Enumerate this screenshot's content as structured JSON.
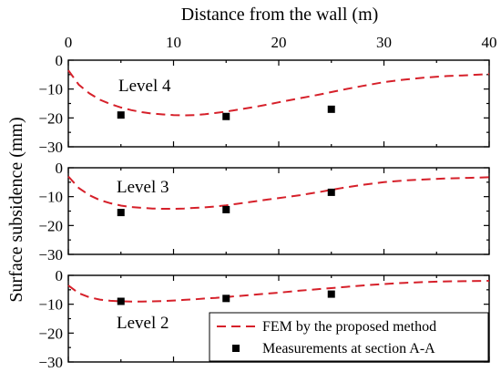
{
  "chart_data": {
    "type": "line",
    "xlabel": "Distance from the wall (m)",
    "ylabel": "Surface subsidence (mm)",
    "xlim": [
      0,
      40
    ],
    "ylim": [
      -30,
      0
    ],
    "x_ticks": [
      "0",
      "10",
      "20",
      "30",
      "40"
    ],
    "y_ticks": [
      "0",
      "−10",
      "−20",
      "−30"
    ],
    "x_axis_position": "top",
    "grid": false,
    "legend_position": "bottom-right",
    "legend": [
      {
        "label": "FEM by the proposed method",
        "style": "dashed-line",
        "color": "#d6202a"
      },
      {
        "label": "Measurements at section A-A",
        "style": "square-marker",
        "color": "#000000"
      }
    ],
    "panels": [
      {
        "label": "Level 4",
        "series": [
          {
            "name": "FEM by the proposed method",
            "kind": "line",
            "color": "#d6202a",
            "x": [
              0,
              1,
              2,
              3,
              4,
              5,
              6,
              7,
              8,
              9,
              10,
              11,
              12,
              13,
              14,
              15,
              16,
              17,
              18,
              19,
              20,
              22,
              24,
              26,
              28,
              30,
              32,
              34,
              36,
              38,
              40
            ],
            "y": [
              -3.5,
              -8.5,
              -11.5,
              -13.7,
              -15.2,
              -16.4,
              -17.3,
              -18.0,
              -18.5,
              -18.8,
              -19.0,
              -19.1,
              -19.0,
              -18.7,
              -18.3,
              -17.8,
              -17.2,
              -16.6,
              -16.0,
              -15.3,
              -14.6,
              -13.2,
              -11.8,
              -10.3,
              -8.9,
              -7.6,
              -6.7,
              -6.0,
              -5.5,
              -5.2,
              -4.8
            ]
          },
          {
            "name": "Measurements at section A-A",
            "kind": "scatter",
            "color": "#000000",
            "x": [
              5,
              15,
              25
            ],
            "y": [
              -19.0,
              -19.5,
              -17.0
            ]
          }
        ]
      },
      {
        "label": "Level 3",
        "series": [
          {
            "name": "FEM by the proposed method",
            "kind": "line",
            "color": "#d6202a",
            "x": [
              0,
              1,
              2,
              3,
              4,
              5,
              6,
              7,
              8,
              9,
              10,
              11,
              12,
              13,
              14,
              15,
              16,
              17,
              18,
              19,
              20,
              22,
              24,
              26,
              28,
              30,
              32,
              34,
              36,
              38,
              40
            ],
            "y": [
              -3.0,
              -7.0,
              -9.5,
              -11.2,
              -12.3,
              -13.1,
              -13.6,
              -13.9,
              -14.1,
              -14.2,
              -14.2,
              -14.1,
              -13.9,
              -13.7,
              -13.4,
              -13.0,
              -12.5,
              -12.0,
              -11.5,
              -11.0,
              -10.5,
              -9.5,
              -8.3,
              -7.0,
              -5.9,
              -5.0,
              -4.4,
              -4.0,
              -3.7,
              -3.5,
              -3.3
            ]
          },
          {
            "name": "Measurements at section A-A",
            "kind": "scatter",
            "color": "#000000",
            "x": [
              5,
              15,
              25
            ],
            "y": [
              -15.5,
              -14.5,
              -8.5
            ]
          }
        ]
      },
      {
        "label": "Level 2",
        "series": [
          {
            "name": "FEM by the proposed method",
            "kind": "line",
            "color": "#d6202a",
            "x": [
              0,
              1,
              2,
              3,
              4,
              5,
              6,
              7,
              8,
              9,
              10,
              11,
              12,
              13,
              14,
              15,
              16,
              17,
              18,
              19,
              20,
              22,
              24,
              26,
              28,
              30,
              32,
              34,
              36,
              38,
              40
            ],
            "y": [
              -3.5,
              -6.2,
              -7.6,
              -8.4,
              -8.8,
              -9.0,
              -9.1,
              -9.1,
              -9.0,
              -8.9,
              -8.7,
              -8.5,
              -8.3,
              -8.0,
              -7.8,
              -7.5,
              -7.2,
              -6.9,
              -6.6,
              -6.3,
              -6.0,
              -5.3,
              -4.7,
              -4.1,
              -3.5,
              -3.0,
              -2.6,
              -2.3,
              -2.1,
              -2.0,
              -1.9
            ]
          },
          {
            "name": "Measurements at section A-A",
            "kind": "scatter",
            "color": "#000000",
            "x": [
              5,
              15,
              25
            ],
            "y": [
              -9.0,
              -8.0,
              -6.5
            ]
          }
        ]
      }
    ]
  }
}
